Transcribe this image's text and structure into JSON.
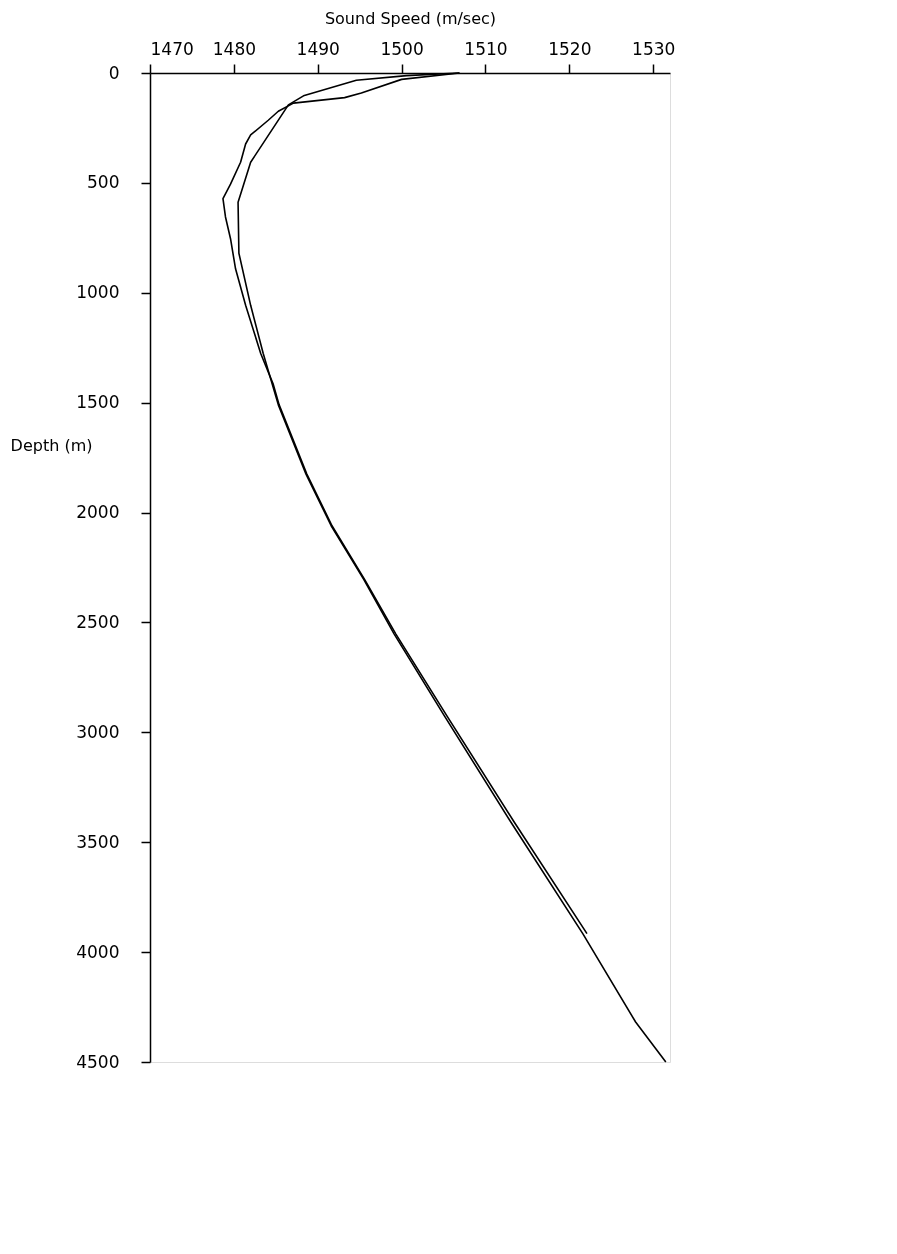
{
  "chart_data": {
    "type": "line",
    "xlabel": "Sound Speed (m/sec)",
    "ylabel": "Depth (m)",
    "xlim": [
      1470,
      1532
    ],
    "xticks": [
      1470,
      1480,
      1490,
      1500,
      1510,
      1520,
      1530
    ],
    "ylim": [
      4500,
      0
    ],
    "yticks": [
      0,
      500,
      1000,
      1500,
      2000,
      2500,
      3000,
      3500,
      4000,
      4500
    ],
    "grid": false,
    "marker": "none",
    "line_style": "solid",
    "series": [
      {
        "color": "#000000",
        "x": [
          1506.9,
          1500.6,
          1494.6,
          1488.3,
          1486.5,
          1482.0,
          1480.5,
          1480.6,
          1482.0,
          1483.5,
          1485.3,
          1488.6,
          1491.6,
          1495.5,
          1499.1,
          1505.1,
          1513.0,
          1521.6,
          1527.9,
          1531.5
        ],
        "values": [
          0,
          12,
          33,
          104,
          145,
          406,
          588,
          820,
          1057,
          1276,
          1510,
          1825,
          2060,
          2305,
          2552,
          2925,
          3407,
          3916,
          4318,
          4500
        ]
      },
      {
        "color": "#000000",
        "x": [
          1506.9,
          1500.0,
          1495.2,
          1493.2,
          1487.1,
          1485.3,
          1484.1,
          1482.0,
          1481.4,
          1480.8,
          1479.6,
          1478.7,
          1479.0,
          1479.6,
          1480.2,
          1481.4,
          1483.2,
          1484.7,
          1485.4,
          1488.7,
          1491.7,
          1495.6,
          1499.3,
          1505.4,
          1513.4,
          1522.1
        ],
        "values": [
          0,
          29,
          91,
          112,
          137,
          174,
          215,
          282,
          323,
          406,
          506,
          572,
          655,
          754,
          891,
          1057,
          1276,
          1417,
          1510,
          1825,
          2060,
          2305,
          2552,
          2925,
          3407,
          3916
        ]
      }
    ]
  }
}
